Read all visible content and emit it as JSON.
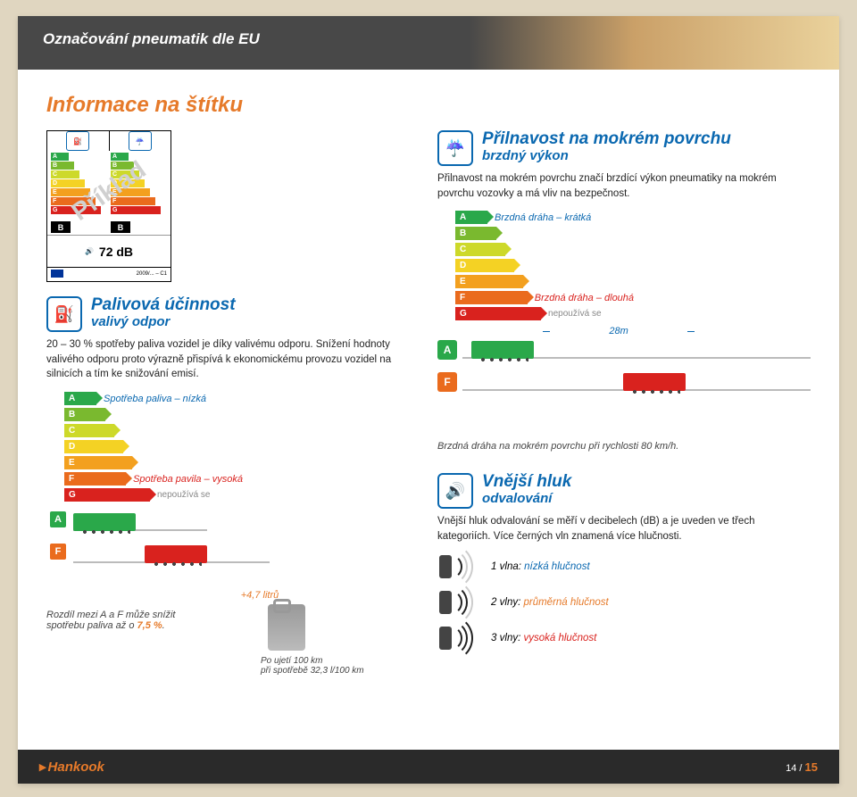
{
  "header_title": "Označování pneumatik dle EU",
  "info_title": "Informace na štítku",
  "eu_label": {
    "sample_text": "Příklad",
    "selected_left": "B",
    "selected_right": "B",
    "noise_db": "72 dB",
    "reg": "2009/... – C1"
  },
  "grades": [
    {
      "letter": "A",
      "color": "#2aa84a",
      "w": 36
    },
    {
      "letter": "B",
      "color": "#7ab92f",
      "w": 46
    },
    {
      "letter": "C",
      "color": "#cdd92a",
      "w": 56
    },
    {
      "letter": "D",
      "color": "#f4d224",
      "w": 66
    },
    {
      "letter": "E",
      "color": "#f3a01f",
      "w": 76
    },
    {
      "letter": "F",
      "color": "#ea6b1d",
      "w": 86
    },
    {
      "letter": "G",
      "color": "#d9221e",
      "w": 96
    }
  ],
  "fuel": {
    "title_l1": "Palivová účinnost",
    "title_l2": "valivý odpor",
    "body": "20 – 30 % spotřeby paliva vozidel je díky valivému odporu. Snížení hodnoty valivého odporu proto výrazně přispívá k ekonomickému provozu vozidel na silnicích a tím ke snižování emisí.",
    "low_note": "Spotřeba paliva – nízká",
    "high_note": "Spotřeba pavila – vysoká",
    "unused_note": "nepoužívá se",
    "diff_note_pre": "Rozdíl mezi A a F může snížit spotřebu paliva až o ",
    "diff_note_val": "7,5 %",
    "jerry_label": "+4,7 litrů",
    "sub_caption_l1": "Po ujetí 100 km",
    "sub_caption_l2": "při spotřebě 32,3 l/100 km"
  },
  "wet": {
    "title_l1": "Přilnavost na mokrém povrchu",
    "title_l2": "brzdný výkon",
    "body": "Přilnavost na mokrém povrchu značí brzdící výkon pneumatiky na mokrém povrchu vozovky a má vliv na bezpečnost.",
    "short_note": "Brzdná dráha – krátká",
    "long_note": "Brzdná dráha – dlouhá",
    "unused_note": "nepoužívá se",
    "distance": "28m",
    "caption": "Brzdná dráha na mokrém povrchu při rychlosti 80 km/h."
  },
  "noise": {
    "title_l1": "Vnější hluk",
    "title_l2": "odvalování",
    "body": "Vnější hluk odvalování se měří v decibelech (dB) a je uveden ve třech kategoriích. Více černých vln znamená více hlučnosti.",
    "levels": [
      {
        "waves": 1,
        "pre": "1 vlna: ",
        "val": "nízká hlučnost",
        "color": "#0a68b0"
      },
      {
        "waves": 2,
        "pre": "2 vlny: ",
        "val": "průměrná hlučnost",
        "color": "#e67a2a"
      },
      {
        "waves": 3,
        "pre": "3 vlny: ",
        "val": "vysoká hlučnost",
        "color": "#d9221e"
      }
    ]
  },
  "footer": {
    "logo": "Hankook",
    "page_current": "14",
    "page_total": "15"
  }
}
